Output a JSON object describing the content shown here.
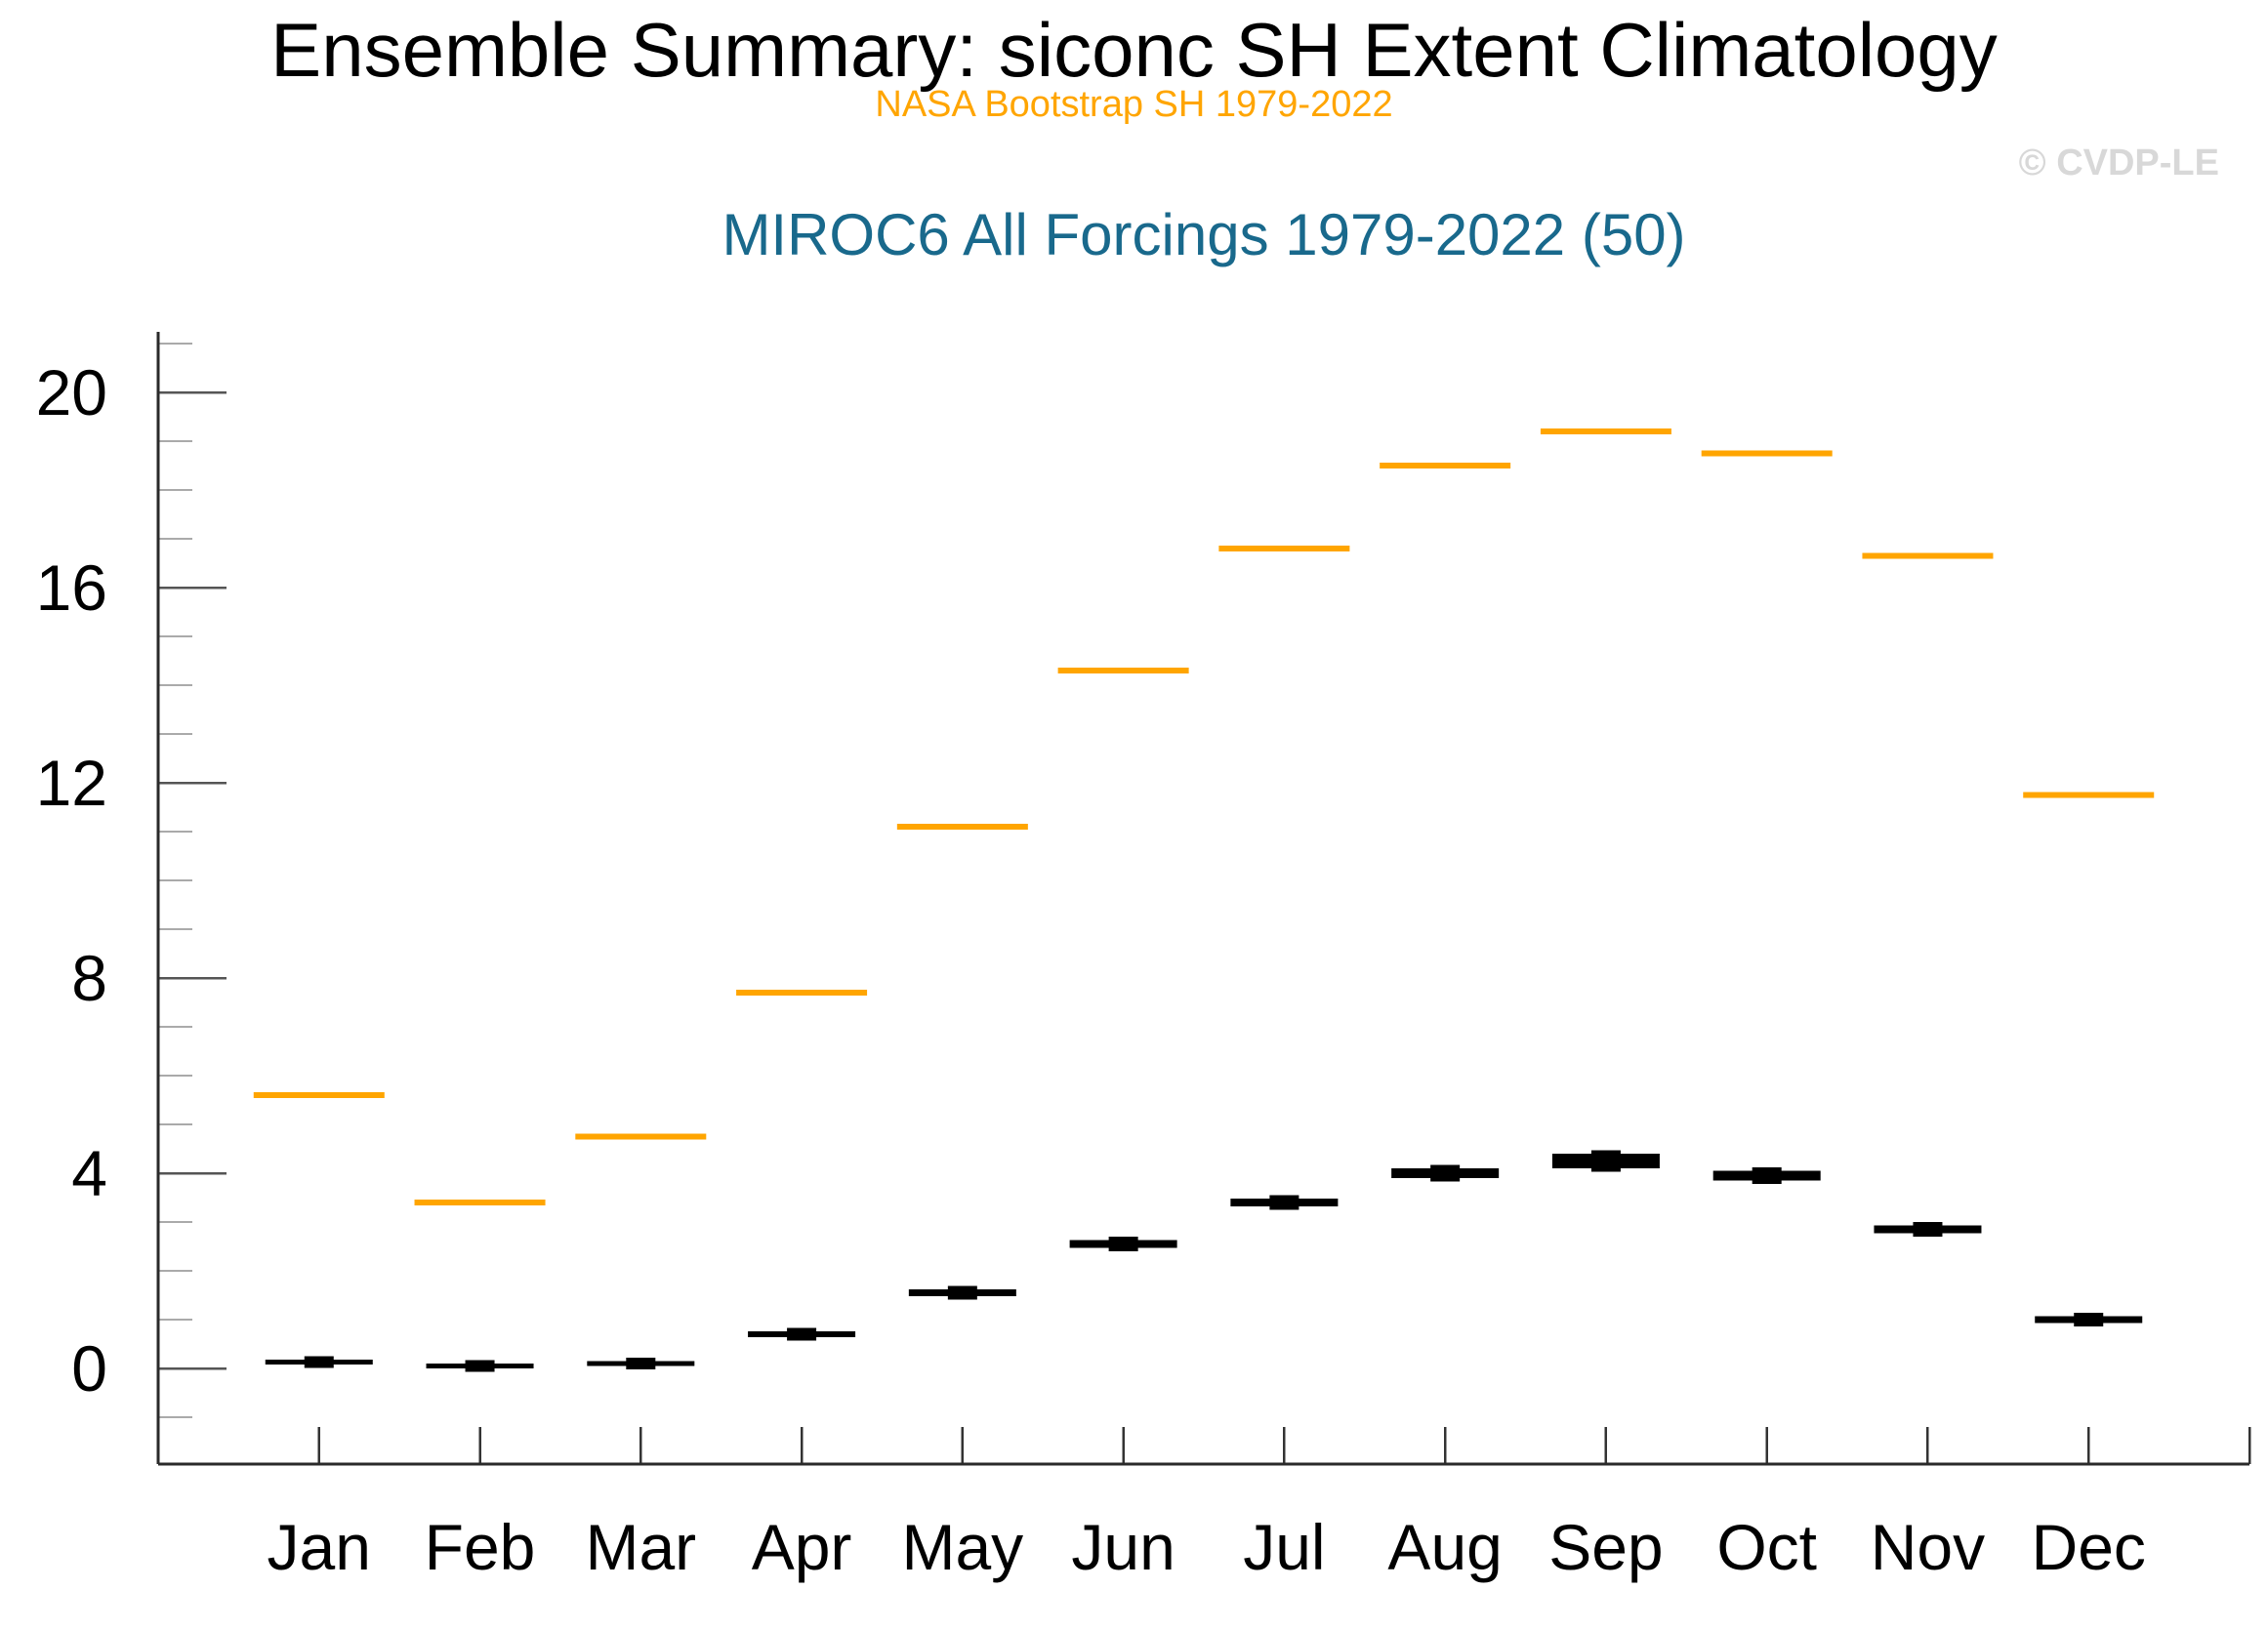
{
  "header": {
    "title": "Ensemble Summary: siconc SH Extent Climatology",
    "subtitle_obs": "NASA Bootstrap SH 1979-2022",
    "subtitle_ensemble": "MIROC6 All Forcings 1979-2022 (50)",
    "watermark": "© CVDP-LE"
  },
  "colors": {
    "obs": "#FFA500",
    "ensemble": "#000000",
    "subtitle_ensemble": "#19698C",
    "watermark": "#D8D8D8",
    "axis": "#2A2A2A",
    "major_tick": "#555555",
    "minor_tick": "#AAAAAA",
    "month_tick": "#333333",
    "tick_label": "#000000"
  },
  "chart_data": {
    "type": "line",
    "style": "monthly horizontal segments (seasonal climatology, no connecting lines)",
    "title": "Ensemble Summary: siconc SH Extent Climatology",
    "categories": [
      "Jan",
      "Feb",
      "Mar",
      "Apr",
      "May",
      "Jun",
      "Jul",
      "Aug",
      "Sep",
      "Oct",
      "Nov",
      "Dec"
    ],
    "series": [
      {
        "name": "NASA Bootstrap SH 1979-2022",
        "role": "observations",
        "color": "#FFA500",
        "values": [
          5.6,
          3.4,
          4.75,
          7.7,
          11.1,
          14.3,
          16.8,
          18.5,
          19.2,
          18.75,
          16.65,
          11.75
        ]
      },
      {
        "name": "MIROC6 All Forcings 1979-2022 ensemble (50 members)",
        "role": "ensemble",
        "color": "#000000",
        "values": [
          0.13,
          0.05,
          0.1,
          0.7,
          1.55,
          2.55,
          3.4,
          4.0,
          4.25,
          3.95,
          2.85,
          1.0
        ],
        "spread": [
          0.1,
          0.08,
          0.1,
          0.12,
          0.14,
          0.16,
          0.16,
          0.2,
          0.3,
          0.2,
          0.16,
          0.14
        ]
      }
    ],
    "xlabel": "",
    "ylabel": "",
    "yticks": [
      0,
      4,
      8,
      12,
      16,
      20
    ],
    "minor_tick_step": 1,
    "ylim": [
      -1.96,
      21.24
    ],
    "grid": false,
    "legend_position": "none"
  }
}
